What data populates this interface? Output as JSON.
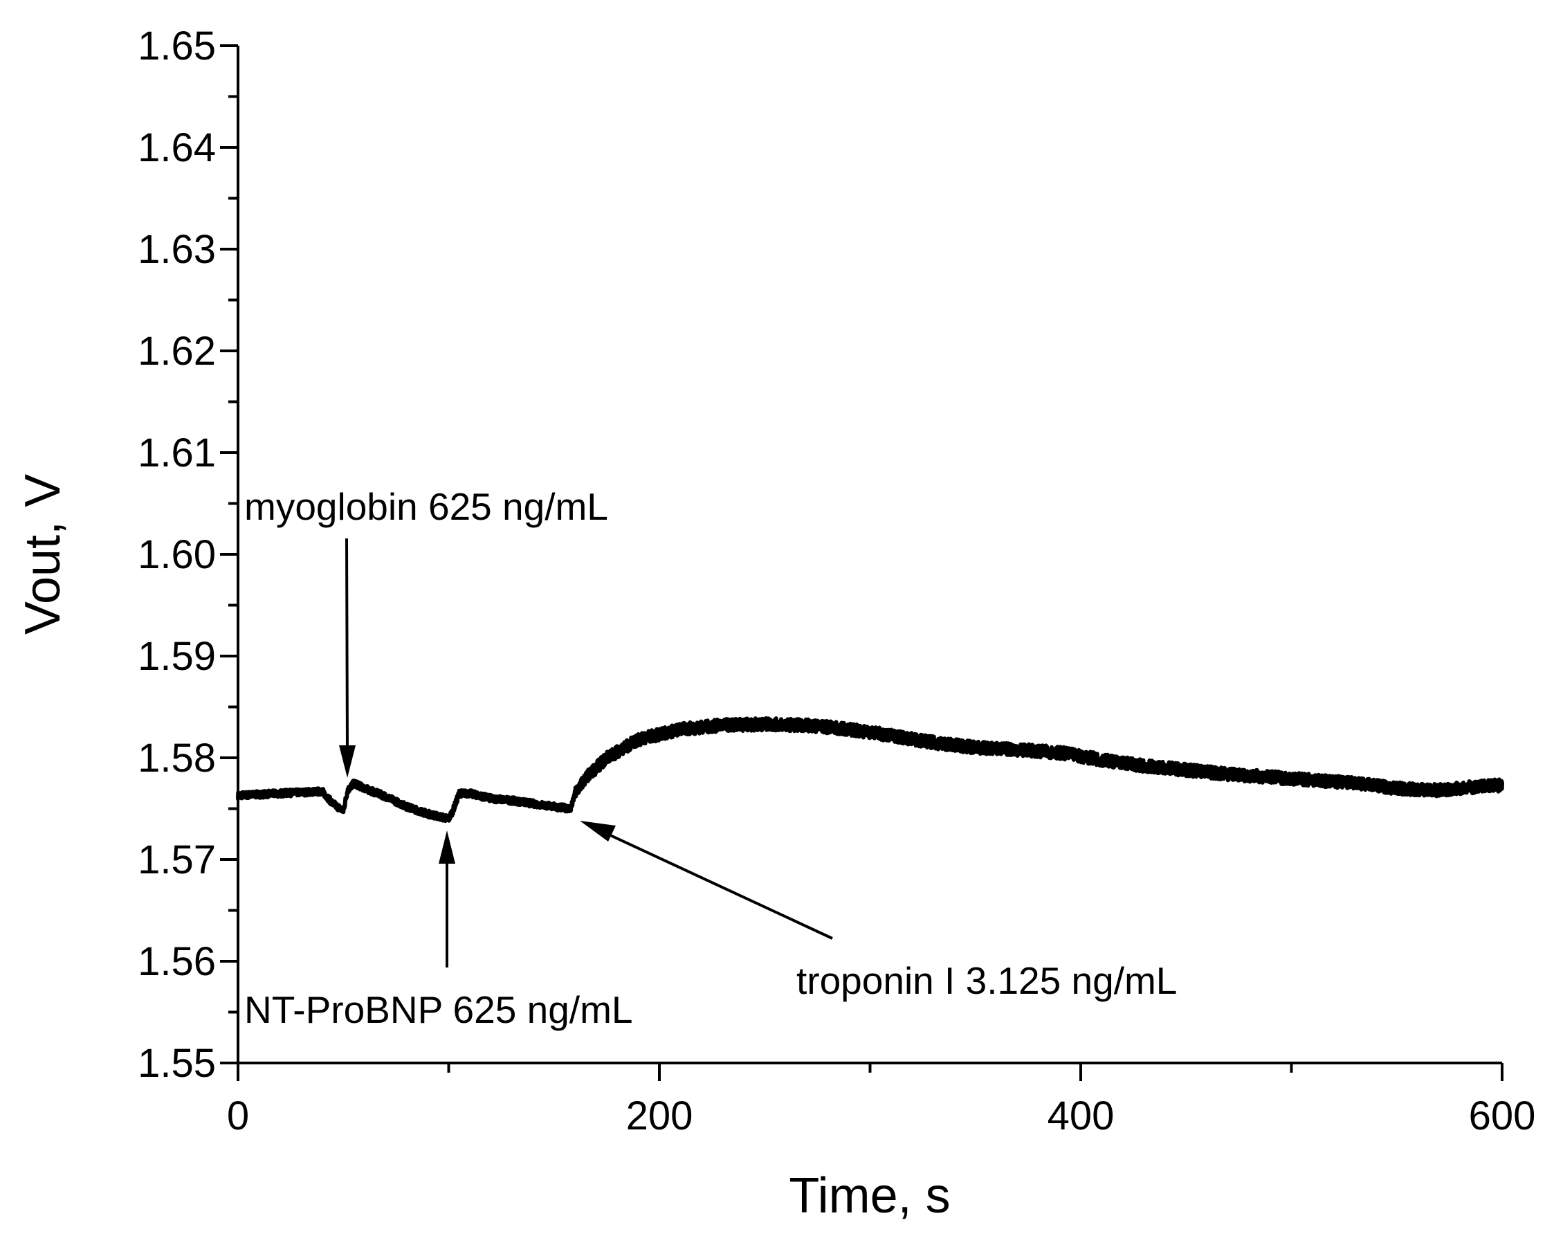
{
  "chart_data": {
    "type": "line",
    "title": "",
    "xlabel": "Time, s",
    "ylabel": "Vout, V",
    "xlim": [
      0,
      600
    ],
    "ylim": [
      1.55,
      1.65
    ],
    "x_ticks": [
      "0",
      "200",
      "400",
      "600"
    ],
    "x_tick_values": [
      0,
      200,
      400,
      600
    ],
    "x_minor_step": 100,
    "y_ticks": [
      "1.55",
      "1.56",
      "1.57",
      "1.58",
      "1.59",
      "1.60",
      "1.61",
      "1.62",
      "1.63",
      "1.64",
      "1.65"
    ],
    "y_tick_values": [
      1.55,
      1.56,
      1.57,
      1.58,
      1.59,
      1.6,
      1.61,
      1.62,
      1.63,
      1.64,
      1.65
    ],
    "y_minor_step": 0.005,
    "grid": false,
    "series": [
      {
        "name": "Vout",
        "color": "#000000",
        "noise_amplitude": 0.0006,
        "x": [
          0,
          20,
          40,
          45,
          50,
          52,
          55,
          60,
          70,
          80,
          90,
          100,
          102,
          105,
          110,
          120,
          130,
          140,
          150,
          158,
          160,
          165,
          175,
          190,
          210,
          230,
          250,
          270,
          290,
          310,
          330,
          350,
          370,
          390,
          410,
          430,
          450,
          470,
          490,
          510,
          530,
          550,
          570,
          590,
          600
        ],
        "y": [
          1.5763,
          1.5765,
          1.5767,
          1.5755,
          1.5748,
          1.5768,
          1.5775,
          1.577,
          1.5762,
          1.5752,
          1.5745,
          1.574,
          1.5748,
          1.5765,
          1.5765,
          1.576,
          1.5758,
          1.5755,
          1.5752,
          1.575,
          1.5765,
          1.578,
          1.58,
          1.5818,
          1.5828,
          1.5832,
          1.5833,
          1.5832,
          1.5828,
          1.5822,
          1.5815,
          1.581,
          1.5808,
          1.5805,
          1.5798,
          1.5792,
          1.5788,
          1.5784,
          1.5781,
          1.5778,
          1.5775,
          1.577,
          1.5768,
          1.5772,
          1.5773
        ]
      }
    ],
    "annotations": [
      {
        "text": "myoglobin 625 ng/mL",
        "x": 51,
        "y": 1.5776
      },
      {
        "text": "NT-ProBNP 625 ng/mL",
        "x": 99,
        "y": 1.5726
      },
      {
        "text": "troponin I 3.125 ng/mL",
        "x": 160,
        "y": 1.5743
      }
    ]
  }
}
